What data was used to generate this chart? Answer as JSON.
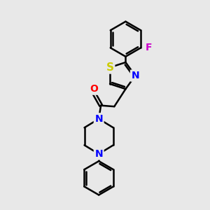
{
  "bg_color": "#e8e8e8",
  "bond_color": "#000000",
  "bond_width": 1.8,
  "atom_colors": {
    "S": "#cccc00",
    "N": "#0000ff",
    "O": "#ff0000",
    "F": "#cc00cc",
    "C": "#000000"
  },
  "font_size": 10,
  "figsize": [
    3.0,
    3.0
  ],
  "dpi": 100,
  "xlim": [
    0,
    10
  ],
  "ylim": [
    0,
    10
  ]
}
